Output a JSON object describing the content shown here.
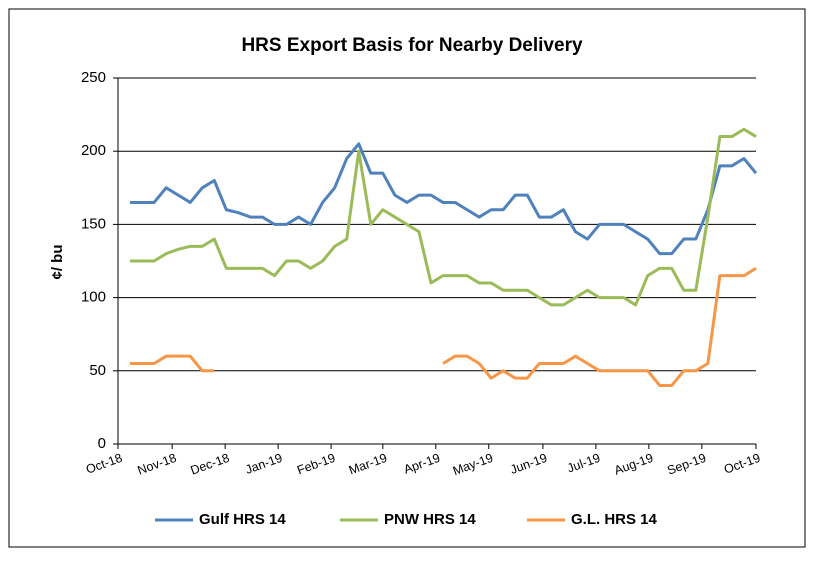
{
  "chart_data": {
    "type": "line",
    "title": "HRS Export Basis for Nearby Delivery",
    "y_label": "¢/ bu",
    "xlim": [
      0,
      53
    ],
    "xticks": [
      {
        "value": 0,
        "label": "Oct-18"
      },
      {
        "value": 4.5,
        "label": "Nov-18"
      },
      {
        "value": 8.9,
        "label": "Dec-18"
      },
      {
        "value": 13.3,
        "label": "Jan-19"
      },
      {
        "value": 17.7,
        "label": "Feb-19"
      },
      {
        "value": 22,
        "label": "Mar-19"
      },
      {
        "value": 26.4,
        "label": "Apr-19"
      },
      {
        "value": 30.8,
        "label": "May-19"
      },
      {
        "value": 35.3,
        "label": "Jun-19"
      },
      {
        "value": 39.7,
        "label": "Jul-19"
      },
      {
        "value": 44.1,
        "label": "Aug-19"
      },
      {
        "value": 48.5,
        "label": "Sep-19"
      },
      {
        "value": 53,
        "label": "Oct-19"
      }
    ],
    "ylim": [
      0,
      250
    ],
    "yticks": [
      0,
      50,
      100,
      150,
      200,
      250
    ],
    "grid": true,
    "x": [
      1,
      2,
      3,
      4,
      5,
      6,
      7,
      8,
      9,
      10,
      11,
      12,
      13,
      14,
      15,
      16,
      17,
      18,
      19,
      20,
      21,
      22,
      23,
      24,
      25,
      26,
      27,
      28,
      29,
      30,
      31,
      32,
      33,
      34,
      35,
      36,
      37,
      38,
      39,
      40,
      41,
      42,
      43,
      44,
      45,
      46,
      47,
      48,
      49,
      50,
      51,
      52,
      53
    ],
    "series": [
      {
        "name": "Gulf HRS 14",
        "color": "#4f81bd",
        "values": [
          165,
          165,
          165,
          175,
          170,
          165,
          175,
          180,
          160,
          158,
          155,
          155,
          150,
          150,
          155,
          150,
          165,
          175,
          195,
          205,
          185,
          185,
          170,
          165,
          170,
          170,
          165,
          165,
          160,
          155,
          160,
          160,
          170,
          170,
          155,
          155,
          160,
          145,
          140,
          150,
          150,
          150,
          145,
          140,
          130,
          130,
          140,
          140,
          160,
          190,
          190,
          195,
          185
        ]
      },
      {
        "name": "PNW HRS 14",
        "color": "#9bbb59",
        "values": [
          125,
          125,
          125,
          130,
          133,
          135,
          135,
          140,
          120,
          120,
          120,
          120,
          115,
          125,
          125,
          120,
          125,
          135,
          140,
          200,
          150,
          160,
          155,
          150,
          145,
          110,
          115,
          115,
          115,
          110,
          110,
          105,
          105,
          105,
          100,
          95,
          95,
          100,
          105,
          100,
          100,
          100,
          95,
          115,
          120,
          120,
          105,
          105,
          155,
          210,
          210,
          215,
          210
        ]
      },
      {
        "name": "G.L. HRS 14",
        "color": "#f79646",
        "values": [
          55,
          55,
          55,
          60,
          60,
          60,
          50,
          50,
          null,
          null,
          null,
          null,
          null,
          null,
          null,
          null,
          null,
          null,
          null,
          null,
          null,
          null,
          null,
          null,
          null,
          null,
          55,
          60,
          60,
          55,
          45,
          50,
          45,
          45,
          55,
          55,
          55,
          60,
          55,
          50,
          50,
          50,
          50,
          50,
          40,
          40,
          50,
          50,
          55,
          115,
          115,
          115,
          120
        ]
      }
    ],
    "legend": "bottom"
  }
}
